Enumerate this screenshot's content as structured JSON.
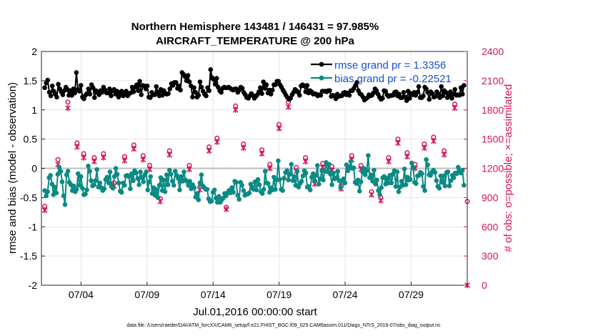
{
  "chart_data": {
    "type": "line",
    "title_line1": "Northern Hemisphere 143481 / 146431 = 97.985%",
    "title_line2": "AIRCRAFT_TEMPERATURE @ 200 hPa",
    "ylabel_left": "rmse and bias (model - observation)",
    "ylabel_right": "# of obs: o=possible; ×=assimilated",
    "xlabel": "Jul.01,2016 00:00:00 start",
    "footnote": "data file: /Users/raeder/DAI/ATM_forcXX/CAM6_setup/f.e21.FHIST_BGC.f09_025.CAM6assim.011/Diags_NTrS_2016-07/obs_diag_output.nc",
    "ylim_left": [
      -2,
      2
    ],
    "yticks_left": [
      "-2",
      "-1.5",
      "-1",
      "-0.5",
      "0",
      "0.5",
      "1",
      "1.5",
      "2"
    ],
    "ylim_right": [
      0,
      2400
    ],
    "yticks_right": [
      "0",
      "300",
      "600",
      "900",
      "1200",
      "1500",
      "1800",
      "2100",
      "2400"
    ],
    "xlim_days": [
      0,
      32.25
    ],
    "xtick_days": [
      3,
      8,
      13,
      18,
      23,
      28
    ],
    "xtick_labels": [
      "07/04",
      "07/09",
      "07/14",
      "07/19",
      "07/24",
      "07/29"
    ],
    "grid": true,
    "zero_line": true,
    "legend_location": "top-right",
    "series": [
      {
        "name": "rmse",
        "legend_label": "rmse grand pr = 1.3356",
        "color": "#000000",
        "values": [
          1.38,
          1.46,
          1.51,
          1.3,
          1.24,
          1.41,
          1.32,
          1.27,
          1.22,
          1.44,
          1.36,
          1.31,
          1.26,
          1.33,
          1.39,
          1.35,
          1.25,
          1.33,
          1.25,
          1.36,
          1.29,
          1.64,
          1.35,
          1.32,
          1.42,
          1.22,
          1.19,
          1.25,
          1.28,
          1.36,
          1.27,
          1.43,
          1.38,
          1.21,
          1.33,
          1.3,
          1.26,
          1.33,
          1.3,
          1.39,
          1.34,
          1.29,
          1.29,
          1.36,
          1.24,
          1.33,
          1.35,
          1.27,
          1.32,
          1.22,
          1.27,
          1.32,
          1.24,
          1.27,
          1.32,
          1.24,
          1.28,
          1.29,
          1.39,
          1.31,
          1.39,
          1.43,
          1.33,
          1.49,
          1.26,
          1.42,
          1.41,
          1.36,
          1.41,
          1.22,
          1.21,
          1.3,
          1.26,
          1.26,
          1.4,
          1.3,
          1.24,
          1.35,
          1.25,
          1.33,
          1.28,
          1.27,
          1.28,
          1.36,
          1.45,
          1.42,
          1.47,
          1.47,
          1.37,
          1.41,
          1.34,
          1.64,
          1.61,
          1.57,
          1.5,
          1.59,
          1.48,
          1.41,
          1.22,
          1.38,
          1.3,
          1.22,
          1.25,
          1.48,
          1.39,
          1.32,
          1.27,
          1.24,
          1.38,
          1.33,
          1.69,
          1.55,
          1.52,
          1.44,
          1.54,
          1.39,
          1.33,
          1.3,
          1.37,
          1.39,
          1.38,
          1.38,
          1.39,
          1.37,
          1.35,
          1.34,
          1.36,
          1.36,
          1.3,
          1.34,
          1.39,
          1.37,
          1.3,
          1.26,
          1.21,
          1.2,
          1.24,
          1.28,
          1.25,
          1.2,
          1.23,
          1.26,
          1.31,
          1.38,
          1.28,
          1.48,
          1.37,
          1.43,
          1.29,
          1.34,
          1.27,
          1.34,
          1.43,
          1.43,
          1.49,
          1.49,
          1.43,
          1.39,
          1.34,
          1.3,
          1.25,
          1.21,
          1.18,
          1.2,
          1.26,
          1.3,
          1.35,
          1.33,
          1.3,
          1.25,
          1.41,
          1.43,
          1.41,
          1.31,
          1.42,
          1.29,
          1.33,
          1.31,
          1.27,
          1.28,
          1.27,
          1.24,
          1.26,
          1.25,
          1.32,
          1.32,
          1.32,
          1.31,
          1.33,
          1.33,
          1.23,
          1.25,
          1.24,
          1.19,
          1.27,
          1.23,
          1.24,
          1.24,
          1.29,
          1.3,
          1.26,
          1.29,
          1.25,
          1.33,
          1.33,
          1.37,
          1.42,
          1.47,
          1.33,
          1.28,
          1.26,
          1.22,
          1.17,
          1.19,
          1.21,
          1.26,
          1.24,
          1.25,
          1.29,
          1.36,
          1.33,
          1.27,
          1.22,
          1.18,
          1.2,
          1.33,
          1.32,
          1.26,
          1.23,
          1.24,
          1.25,
          1.25,
          1.3,
          1.31,
          1.24,
          1.27,
          1.21,
          1.21,
          1.3,
          1.22,
          1.16,
          1.32,
          1.2,
          1.28,
          1.26,
          1.3,
          1.25,
          1.3,
          1.4,
          1.21,
          1.21,
          1.24,
          1.39,
          1.36,
          1.3,
          1.18,
          1.31,
          1.28,
          1.22,
          1.23,
          1.31,
          1.27,
          1.21,
          1.4,
          1.24,
          1.33,
          1.3,
          1.21,
          1.25,
          1.31,
          1.2,
          1.27,
          1.35,
          1.25,
          1.26,
          1.25,
          1.38,
          1.27,
          1.42
        ]
      },
      {
        "name": "bias",
        "legend_label": "bias grand pr = -0.22521",
        "color": "#0b8a84",
        "values": [
          -0.38,
          -0.47,
          -0.4,
          -0.16,
          -0.12,
          -0.27,
          -0.45,
          -0.32,
          -0.42,
          -0.1,
          0.02,
          -0.05,
          -0.23,
          -0.47,
          -0.62,
          -0.11,
          -0.05,
          -0.24,
          -0.28,
          -0.38,
          -0.3,
          -0.4,
          -0.36,
          -0.09,
          -0.29,
          -0.14,
          -0.34,
          -0.45,
          -0.44,
          -0.37,
          0.04,
          -0.05,
          -0.21,
          -0.3,
          -0.28,
          -0.21,
          -0.02,
          -0.32,
          -0.25,
          -0.33,
          -0.38,
          -0.35,
          -0.19,
          -0.15,
          -0.25,
          -0.06,
          -0.31,
          -0.34,
          -0.14,
          0.0,
          -0.1,
          -0.25,
          -0.39,
          -0.41,
          -0.25,
          -0.29,
          -0.13,
          -0.12,
          -0.14,
          -0.35,
          -0.09,
          -0.21,
          -0.04,
          -0.08,
          -0.17,
          -0.28,
          -0.06,
          -0.16,
          -0.23,
          -0.11,
          -0.06,
          -0.37,
          -0.23,
          -0.14,
          -0.43,
          -0.33,
          -0.46,
          -0.36,
          -0.5,
          -0.29,
          -0.16,
          -0.38,
          -0.2,
          -0.4,
          -0.11,
          -0.28,
          -0.03,
          -0.1,
          -0.22,
          -0.29,
          -0.05,
          -0.12,
          -0.17,
          -0.37,
          -0.14,
          -0.22,
          -0.06,
          -0.2,
          -0.22,
          -0.29,
          -0.22,
          -0.35,
          -0.28,
          -0.33,
          -0.49,
          -0.43,
          -0.54,
          -0.25,
          -0.11,
          -0.3,
          -0.33,
          -0.36,
          -0.36,
          -0.52,
          -0.57,
          -0.56,
          -0.41,
          -0.37,
          -0.51,
          -0.58,
          -0.48,
          -0.58,
          -0.54,
          -0.51,
          -0.43,
          -0.47,
          -0.42,
          -0.38,
          -0.42,
          -0.33,
          -0.41,
          -0.22,
          -0.24,
          -0.46,
          -0.53,
          -0.24,
          -0.29,
          -0.38,
          -0.46,
          -0.44,
          -0.44,
          -0.42,
          -0.27,
          -0.32,
          -0.36,
          -0.23,
          -0.37,
          -0.19,
          -0.28,
          -0.4,
          -0.43,
          -0.36,
          -0.05,
          -0.25,
          -0.26,
          -0.41,
          -0.33,
          -0.37,
          -0.15,
          -0.36,
          -0.2,
          0.13,
          -0.19,
          -0.36,
          -0.38,
          -0.17,
          -0.07,
          -0.04,
          -0.2,
          -0.1,
          0.07,
          -0.21,
          -0.14,
          -0.29,
          -0.05,
          -0.32,
          -0.26,
          -0.22,
          -0.13,
          -0.04,
          -0.08,
          -0.32,
          -0.31,
          -0.37,
          -0.15,
          -0.09,
          -0.22,
          -0.12,
          0.05,
          -0.27,
          -0.18,
          -0.04,
          -0.2,
          -0.05,
          0.1,
          -0.06,
          0.07,
          -0.1,
          -0.28,
          -0.08,
          -0.18,
          -0.16,
          -0.05,
          -0.21,
          -0.33,
          -0.21,
          -0.18,
          -0.25,
          0.06,
          -0.04,
          0.02,
          0.12,
          0.0,
          0.01,
          -0.24,
          -0.26,
          -0.2,
          -0.39,
          -0.23,
          -0.06,
          0.0,
          -0.11,
          -0.04,
          0.22,
          -0.16,
          -0.11,
          -0.22,
          -0.03,
          -0.27,
          -0.2,
          -0.38,
          -0.45,
          -0.33,
          -0.16,
          -0.14,
          -0.27,
          -0.17,
          -0.25,
          -0.12,
          -0.25,
          -0.1,
          -0.04,
          -0.31,
          -0.06,
          -0.4,
          -0.32,
          -0.22,
          -0.29,
          -0.01,
          -0.28,
          -0.15,
          -0.2,
          -0.19,
          0.09,
          0.01,
          -0.24,
          -0.26,
          -0.13,
          -0.12,
          -0.07,
          -0.09,
          -0.31,
          -0.38,
          0.15,
          0.06,
          -0.11,
          -0.12,
          -0.06,
          -0.03,
          -0.07,
          -0.21,
          -0.31,
          -0.34,
          -0.13,
          -0.24,
          -0.13,
          -0.3,
          -0.07,
          -0.06,
          -0.3,
          -0.21,
          -0.12,
          -0.16,
          -0.08,
          -0.09,
          0.02,
          -0.05,
          -0.08,
          -0.03,
          -0.29
        ]
      }
    ],
    "obs_counts": {
      "color": "#d4145a",
      "days": [
        0.25,
        1.25,
        2.0,
        2.7,
        3.2,
        4.0,
        4.7,
        5.5,
        6.3,
        7.0,
        7.7,
        8.2,
        9.0,
        9.7,
        10.5,
        11.2,
        12.0,
        12.7,
        13.3,
        14.0,
        14.7,
        15.3,
        16.0,
        16.7,
        17.3,
        18.0,
        18.7,
        19.3,
        20.0,
        20.7,
        21.3,
        22.0,
        22.7,
        23.5,
        24.2,
        25.0,
        25.7,
        26.3,
        27.0,
        27.7,
        28.3,
        29.0,
        29.7,
        30.5,
        31.3,
        32.25
      ],
      "possible": [
        810,
        1290,
        1880,
        1460,
        1350,
        1310,
        1350,
        1050,
        1320,
        1440,
        1330,
        1230,
        890,
        1380,
        1100,
        1230,
        1010,
        1420,
        1510,
        800,
        1840,
        1450,
        1030,
        1390,
        1240,
        1650,
        1880,
        1210,
        1310,
        1070,
        1250,
        1220,
        1020,
        1330,
        1230,
        960,
        900,
        1310,
        1500,
        1360,
        1240,
        1450,
        1520,
        1380,
        1860,
        860
      ],
      "assimilated": [
        770,
        1240,
        1820,
        1420,
        1310,
        1270,
        1310,
        1020,
        1280,
        1400,
        1290,
        1190,
        860,
        1340,
        1070,
        1190,
        980,
        1380,
        1470,
        780,
        1800,
        1410,
        1000,
        1350,
        1200,
        1610,
        1830,
        1170,
        1270,
        1040,
        1210,
        1180,
        990,
        1290,
        1190,
        930,
        870,
        1270,
        1460,
        1320,
        1200,
        1410,
        1480,
        1340,
        1820,
        0
      ]
    }
  }
}
